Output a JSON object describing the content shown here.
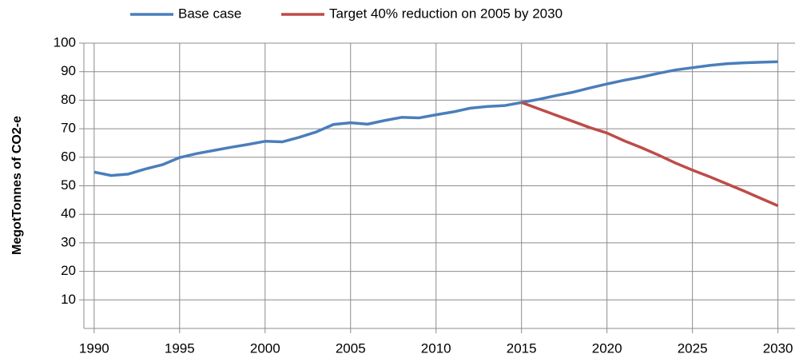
{
  "chart_data": {
    "type": "line",
    "y_label": "MegotTonnes of CO2-e",
    "x": [
      1990,
      1991,
      1992,
      1993,
      1994,
      1995,
      1996,
      1997,
      1998,
      1999,
      2000,
      2001,
      2002,
      2003,
      2004,
      2005,
      2006,
      2007,
      2008,
      2009,
      2010,
      2011,
      2012,
      2013,
      2014,
      2015,
      2016,
      2017,
      2018,
      2019,
      2020,
      2021,
      2022,
      2023,
      2024,
      2025,
      2026,
      2027,
      2028,
      2029,
      2030
    ],
    "series": [
      {
        "name": "Base case",
        "color": "#4a7ebb",
        "values": [
          54.8,
          53.6,
          54.1,
          55.9,
          57.4,
          59.9,
          61.3,
          62.4,
          63.5,
          64.5,
          65.6,
          65.4,
          67,
          68.9,
          71.5,
          72.1,
          71.6,
          72.9,
          74,
          73.8,
          74.9,
          75.9,
          77.2,
          77.8,
          78.1,
          79.2,
          80.3,
          81.6,
          82.8,
          84.3,
          85.7,
          87,
          88.1,
          89.4,
          90.6,
          91.4,
          92.2,
          92.8,
          93.1,
          93.3,
          93.5
        ]
      },
      {
        "name": "Target 40% reduction on 2005 by 2030",
        "color": "#be4b48",
        "values": [
          null,
          null,
          null,
          null,
          null,
          null,
          null,
          null,
          null,
          null,
          null,
          null,
          null,
          null,
          null,
          null,
          null,
          null,
          null,
          null,
          null,
          null,
          null,
          null,
          null,
          79.2,
          77,
          74.8,
          72.6,
          70.4,
          68.5,
          65.8,
          63.4,
          60.8,
          58,
          55.5,
          53.2,
          50.7,
          48.2,
          45.6,
          43
        ]
      }
    ],
    "xlim": [
      1989.4,
      2031
    ],
    "xticks": [
      1990,
      1995,
      2000,
      2005,
      2010,
      2015,
      2020,
      2025,
      2030
    ],
    "ylim": [
      0,
      100
    ],
    "yticks": [
      10,
      20,
      30,
      40,
      50,
      60,
      70,
      80,
      90,
      100
    ],
    "grid": true,
    "legend": "top"
  }
}
